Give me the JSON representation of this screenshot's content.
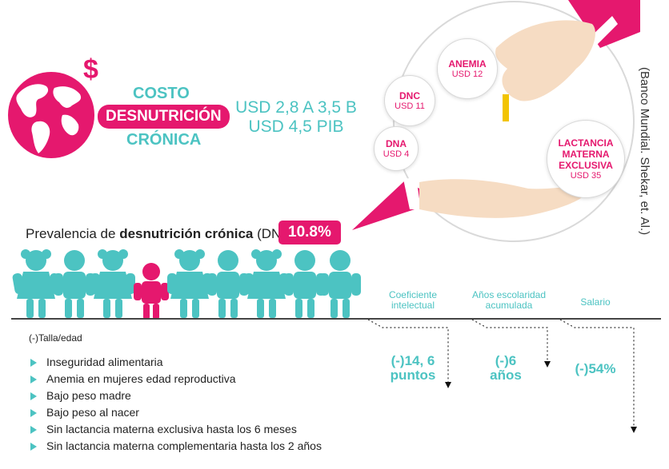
{
  "cost": {
    "line1": "COSTO",
    "line2": "DESNUTRICIÓN",
    "line3": "CRÓNICA",
    "amount1": "USD 2,8 A 3,5 B",
    "amount2": "USD 4,5 PIB",
    "currency_symbol": "$"
  },
  "interventions": [
    {
      "name": "ANEMIA",
      "value": "USD 12"
    },
    {
      "name": "DNC",
      "value": "USD 11"
    },
    {
      "name": "DNA",
      "value": "USD 4"
    },
    {
      "name": "LACTANCIA\nMATERNA\nEXCLUSIVA",
      "value": "USD 35"
    }
  ],
  "source": "(Banco Mundial. Shekar, et. Al.)",
  "prevalence": {
    "label_pre": "Prevalencia de ",
    "label_bold": "desnutrición crónica",
    "label_post": " (DNC)",
    "value": "10.8%"
  },
  "axis_label": "(-)Talla/edad",
  "columns": [
    {
      "header": "Coeficiente intelectual",
      "impact": "(-)14, 6 puntos"
    },
    {
      "header": "Años escolaridad acumulada",
      "impact": "(-)6 años"
    },
    {
      "header": "Salario",
      "impact": "(-)54%"
    }
  ],
  "risk_factors": [
    "Inseguridad alimentaria",
    "Anemia en mujeres edad reproductiva",
    "Bajo peso madre",
    "Bajo peso al nacer",
    "Sin lactancia materna exclusiva hasta los 6 meses",
    "Sin lactancia materna complementaria hasta los 2 años"
  ],
  "colors": {
    "pink": "#e5186e",
    "teal": "#4cc3c2",
    "skin": "#f6dcc3"
  }
}
